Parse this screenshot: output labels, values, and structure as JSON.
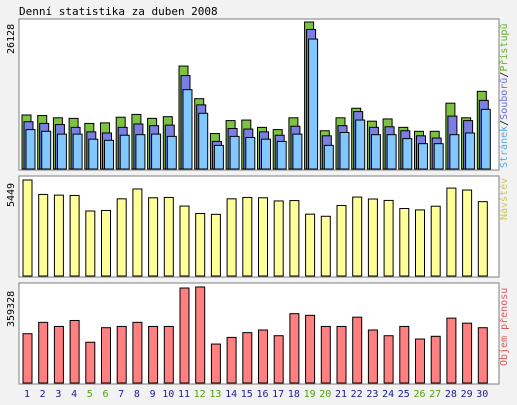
{
  "title": "Denní statistika za duben 2008",
  "colors": {
    "hits": "#7ec242",
    "files": "#7b7fe3",
    "pages": "#82c8ff",
    "visits": "#ffff99",
    "kbytes": "#ff8080",
    "weekend_text": "#55a010",
    "weekday_text": "#1a1a9a",
    "bar_outline": "#000000"
  },
  "chart_data": [
    {
      "type": "bar",
      "name": "hits-files-pages",
      "categories": [
        "1",
        "2",
        "3",
        "4",
        "5",
        "6",
        "7",
        "8",
        "9",
        "10",
        "11",
        "12",
        "13",
        "14",
        "15",
        "16",
        "17",
        "18",
        "19",
        "20",
        "21",
        "22",
        "23",
        "24",
        "25",
        "26",
        "27",
        "28",
        "29",
        "30"
      ],
      "weekend_days": [
        "5",
        "6",
        "12",
        "13",
        "19",
        "20",
        "26",
        "27"
      ],
      "ymax_label": "26128",
      "ylim": [
        0,
        26128
      ],
      "series": [
        {
          "name": "Přístupů",
          "values": [
            9600,
            9500,
            9100,
            9000,
            8100,
            8200,
            9200,
            9700,
            9000,
            9300,
            18300,
            12500,
            6300,
            8600,
            8700,
            7400,
            7000,
            9100,
            26128,
            6800,
            9100,
            10800,
            8500,
            8900,
            7400,
            6700,
            6700,
            11700,
            9100,
            13800
          ]
        },
        {
          "name": "Souborů",
          "values": [
            8400,
            8100,
            7900,
            7400,
            6600,
            6400,
            7400,
            8000,
            7700,
            7800,
            16600,
            11400,
            4900,
            7200,
            7100,
            6600,
            6000,
            7600,
            24800,
            5900,
            7700,
            10200,
            7400,
            7500,
            6800,
            5900,
            5500,
            9400,
            8600,
            12200
          ]
        },
        {
          "name": "Stránek",
          "values": [
            7000,
            6700,
            6200,
            6200,
            5300,
            5100,
            6000,
            6100,
            6200,
            5800,
            14100,
            9900,
            4200,
            5800,
            5600,
            5300,
            4900,
            6200,
            23100,
            4200,
            6500,
            8700,
            6100,
            6100,
            5400,
            4500,
            4500,
            6100,
            6400,
            10600
          ]
        }
      ]
    },
    {
      "type": "bar",
      "name": "visits",
      "categories": [
        "1",
        "2",
        "3",
        "4",
        "5",
        "6",
        "7",
        "8",
        "9",
        "10",
        "11",
        "12",
        "13",
        "14",
        "15",
        "16",
        "17",
        "18",
        "19",
        "20",
        "21",
        "22",
        "23",
        "24",
        "25",
        "26",
        "27",
        "28",
        "29",
        "30"
      ],
      "ymax_label": "5449",
      "ylim": [
        0,
        5449
      ],
      "series": [
        {
          "name": "Návštěv",
          "values": [
            5449,
            4630,
            4590,
            4570,
            3690,
            3720,
            4380,
            4940,
            4440,
            4460,
            3970,
            3550,
            3500,
            4380,
            4460,
            4440,
            4260,
            4280,
            3510,
            3390,
            4000,
            4480,
            4370,
            4290,
            3830,
            3750,
            3960,
            4990,
            4880,
            4220
          ]
        }
      ]
    },
    {
      "type": "bar",
      "name": "kbytes",
      "categories": [
        "1",
        "2",
        "3",
        "4",
        "5",
        "6",
        "7",
        "8",
        "9",
        "10",
        "11",
        "12",
        "13",
        "14",
        "15",
        "16",
        "17",
        "18",
        "19",
        "20",
        "21",
        "22",
        "23",
        "24",
        "25",
        "26",
        "27",
        "28",
        "29",
        "30"
      ],
      "ymax_label": "359328",
      "ylim": [
        0,
        359328
      ],
      "series": [
        {
          "name": "Objem přenosu",
          "values": [
            184500,
            227000,
            211700,
            234000,
            152600,
            207000,
            211700,
            227000,
            211700,
            211700,
            355500,
            359328,
            145800,
            170700,
            188500,
            198400,
            177000,
            259500,
            253300,
            211700,
            211700,
            246300,
            198400,
            177000,
            211700,
            164600,
            174800,
            242800,
            224000,
            207000
          ]
        }
      ]
    }
  ]
}
